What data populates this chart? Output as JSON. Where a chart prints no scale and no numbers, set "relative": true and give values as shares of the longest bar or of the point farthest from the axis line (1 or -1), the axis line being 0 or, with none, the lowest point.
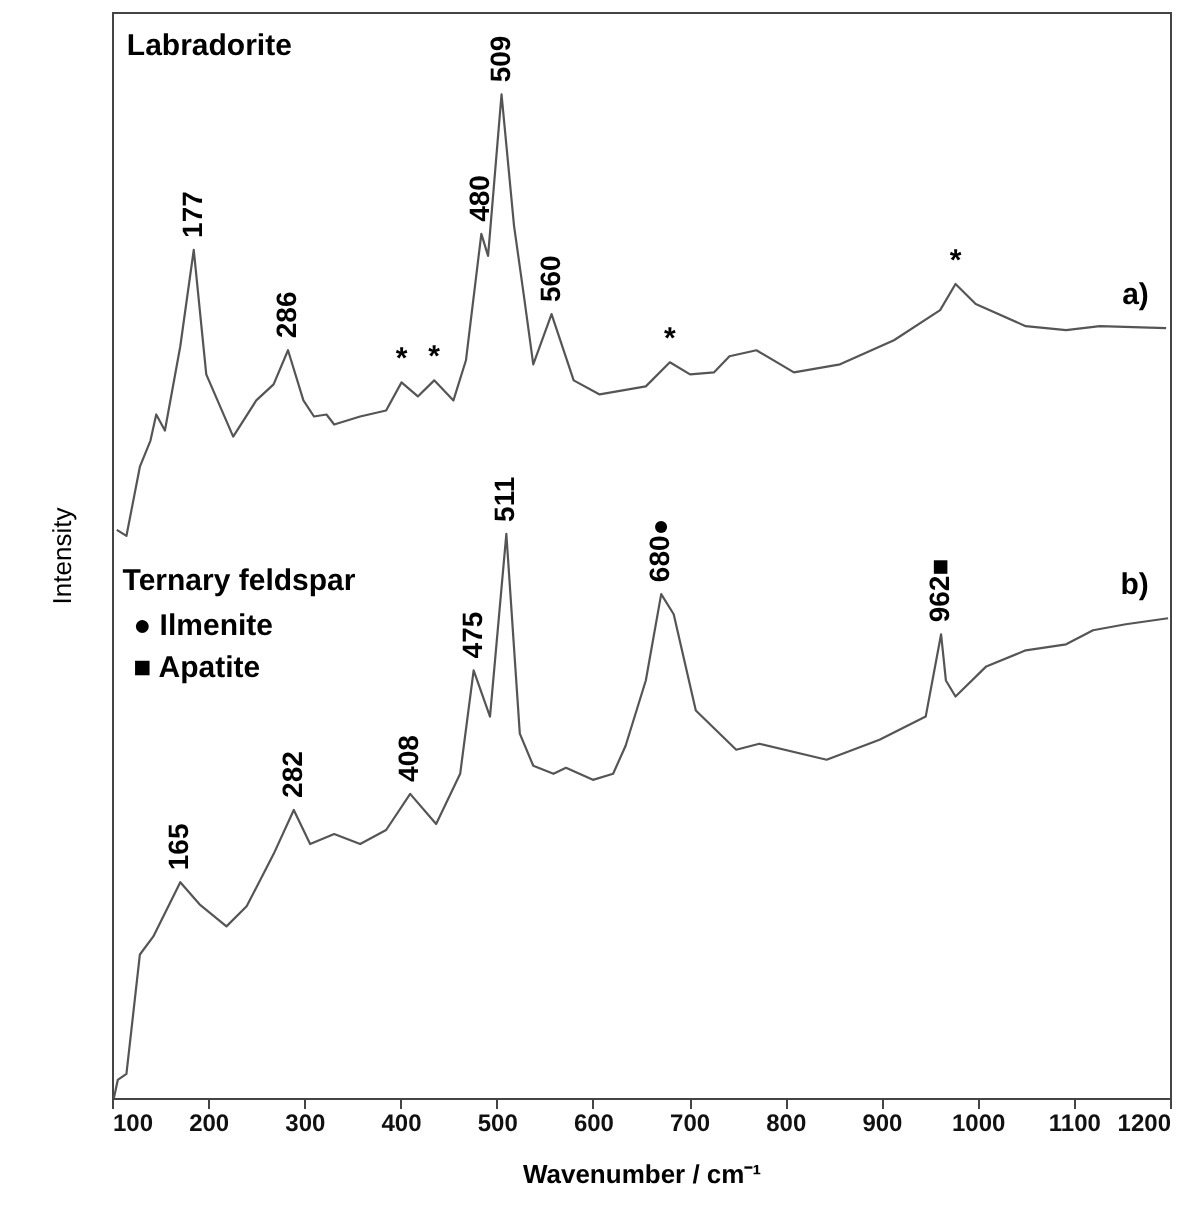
{
  "chart_data": {
    "type": "line",
    "relative": true,
    "xlabel": "Wavenumber / cm⁻¹",
    "ylabel": "Intensity",
    "xlim": [
      100,
      1200
    ],
    "xticks": [
      100,
      200,
      300,
      400,
      500,
      600,
      700,
      800,
      900,
      1000,
      1100,
      1200
    ],
    "grid": false,
    "marker": "none",
    "line_style": "solid",
    "series": [
      {
        "color": "#555555",
        "x": [
          105,
          115,
          129,
          140,
          146,
          155,
          171,
          185,
          198,
          226,
          250,
          268,
          283,
          299,
          310,
          323,
          331,
          358,
          385,
          401,
          418,
          435,
          455,
          468,
          484,
          491,
          505,
          518,
          528,
          538,
          557,
          580,
          607,
          655,
          680,
          701,
          726,
          742,
          770,
          809,
          857,
          913,
          961,
          977,
          998,
          1050,
          1092,
          1127,
          1196
        ],
        "values": [
          0.566,
          0.56,
          0.629,
          0.655,
          0.681,
          0.665,
          0.749,
          0.845,
          0.721,
          0.659,
          0.695,
          0.711,
          0.745,
          0.695,
          0.679,
          0.681,
          0.671,
          0.679,
          0.685,
          0.713,
          0.699,
          0.715,
          0.695,
          0.735,
          0.861,
          0.839,
          1.0,
          0.869,
          0.801,
          0.731,
          0.781,
          0.715,
          0.701,
          0.709,
          0.733,
          0.721,
          0.723,
          0.739,
          0.745,
          0.723,
          0.731,
          0.755,
          0.785,
          0.811,
          0.791,
          0.769,
          0.765,
          0.769,
          0.767
        ]
      },
      {
        "color": "#555555",
        "x": [
          102,
          106,
          115,
          129,
          143,
          171,
          191,
          219,
          240,
          268,
          289,
          306,
          331,
          358,
          385,
          410,
          437,
          462,
          476,
          493,
          510,
          524,
          538,
          559,
          572,
          600,
          621,
          634,
          655,
          671,
          684,
          707,
          749,
          773,
          843,
          898,
          946,
          962,
          967,
          977,
          1009,
          1050,
          1092,
          1120,
          1154,
          1198
        ],
        "values": [
          0.0,
          0.018,
          0.024,
          0.143,
          0.161,
          0.215,
          0.193,
          0.171,
          0.191,
          0.243,
          0.287,
          0.253,
          0.263,
          0.253,
          0.267,
          0.303,
          0.273,
          0.323,
          0.426,
          0.38,
          0.562,
          0.363,
          0.331,
          0.323,
          0.329,
          0.317,
          0.323,
          0.351,
          0.416,
          0.502,
          0.482,
          0.386,
          0.347,
          0.353,
          0.337,
          0.357,
          0.38,
          0.462,
          0.416,
          0.4,
          0.43,
          0.446,
          0.452,
          0.466,
          0.472,
          0.478
        ]
      }
    ],
    "annotations": [
      "Labradorite",
      "a)",
      "b)",
      "Ternary feldspar",
      "● Ilmenite",
      "■ Apatite",
      {
        "text": "177",
        "x": 185,
        "y": 0.845
      },
      {
        "text": "286",
        "x": 283,
        "y": 0.745
      },
      {
        "text": "480",
        "x": 484,
        "y": 0.861
      },
      {
        "text": "509",
        "x": 505,
        "y": 1.0
      },
      {
        "text": "560",
        "x": 557,
        "y": 0.781
      },
      {
        "text": "*",
        "x": 401,
        "y": 0.713
      },
      {
        "text": "*",
        "x": 435,
        "y": 0.715
      },
      {
        "text": "*",
        "x": 680,
        "y": 0.733
      },
      {
        "text": "*",
        "x": 977,
        "y": 0.811
      },
      {
        "text": "165",
        "x": 171,
        "y": 0.215
      },
      {
        "text": "282",
        "x": 289,
        "y": 0.287
      },
      {
        "text": "408",
        "x": 410,
        "y": 0.303
      },
      {
        "text": "475",
        "x": 476,
        "y": 0.426
      },
      {
        "text": "511",
        "x": 510,
        "y": 0.562
      },
      {
        "text": "680●",
        "x": 671,
        "y": 0.502
      },
      {
        "text": "962■",
        "x": 962,
        "y": 0.462
      }
    ]
  }
}
